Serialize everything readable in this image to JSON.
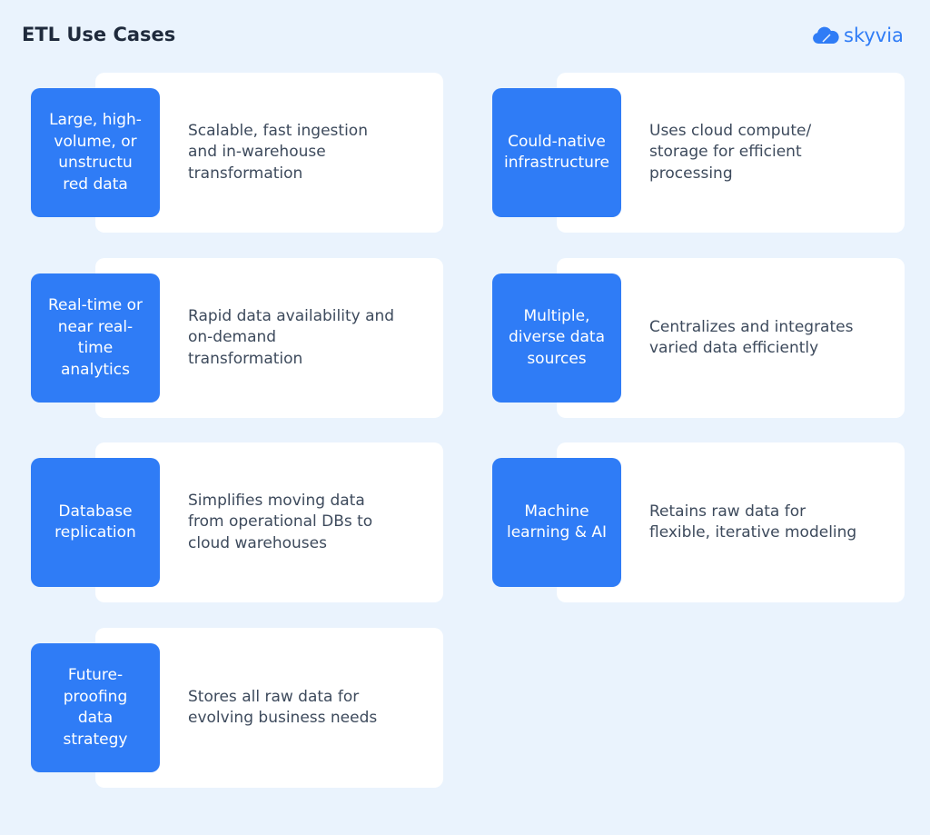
{
  "title": "ETL Use Cases",
  "logo": {
    "text": "skyvia",
    "icon": "cloud-icon",
    "color": "#2f7cf6"
  },
  "colors": {
    "background": "#eaf3fd",
    "accent": "#2f7cf6",
    "card": "#ffffff",
    "text": "#3d4a5c"
  },
  "items": [
    {
      "label": "Large, high-\nvolume, or\nunstructu\nred data",
      "description": "Scalable, fast ingestion\nand in-warehouse\ntransformation"
    },
    {
      "label": "Could-native\ninfrastructure",
      "description": "Uses cloud compute/\nstorage for efficient\nprocessing"
    },
    {
      "label": "Real-time or\nnear real-\ntime\nanalytics",
      "description": "Rapid data availability and\non-demand\ntransformation"
    },
    {
      "label": "Multiple,\ndiverse data\nsources",
      "description": "Centralizes and integrates\nvaried data efficiently"
    },
    {
      "label": "Database\nreplication",
      "description": "Simplifies moving data\nfrom operational DBs to\ncloud warehouses"
    },
    {
      "label": "Machine\nlearning & AI",
      "description": "Retains raw data for\nflexible, iterative modeling"
    },
    {
      "label": "Future-\nproofing\ndata\nstrategy",
      "description": "Stores all raw data for\nevolving business needs"
    }
  ]
}
